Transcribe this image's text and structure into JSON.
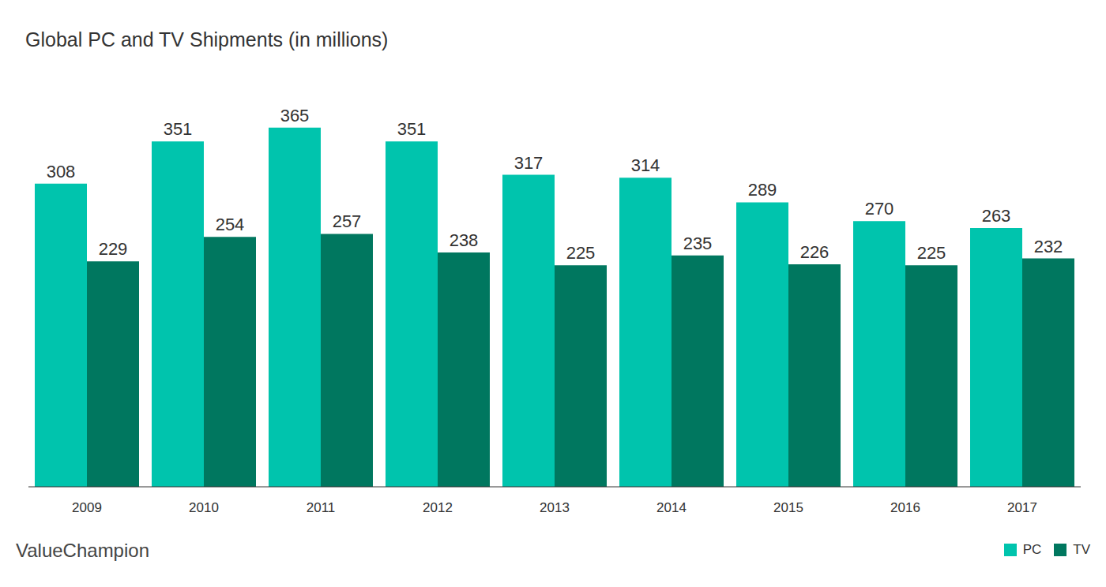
{
  "chart_data": {
    "type": "bar",
    "title": "Global PC and TV Shipments (in millions)",
    "source": "ValueChampion",
    "categories": [
      "2009",
      "2010",
      "2011",
      "2012",
      "2013",
      "2014",
      "2015",
      "2016",
      "2017"
    ],
    "series": [
      {
        "name": "PC",
        "color": "#00c4ad",
        "values": [
          308,
          351,
          365,
          351,
          317,
          314,
          289,
          270,
          263
        ]
      },
      {
        "name": "TV",
        "color": "#00775f",
        "values": [
          229,
          254,
          257,
          238,
          225,
          235,
          226,
          225,
          232
        ]
      }
    ],
    "ylim": [
      0,
      400
    ],
    "tick_labels": "x",
    "data_labels": true,
    "grid": false,
    "legend": "bottom right"
  }
}
